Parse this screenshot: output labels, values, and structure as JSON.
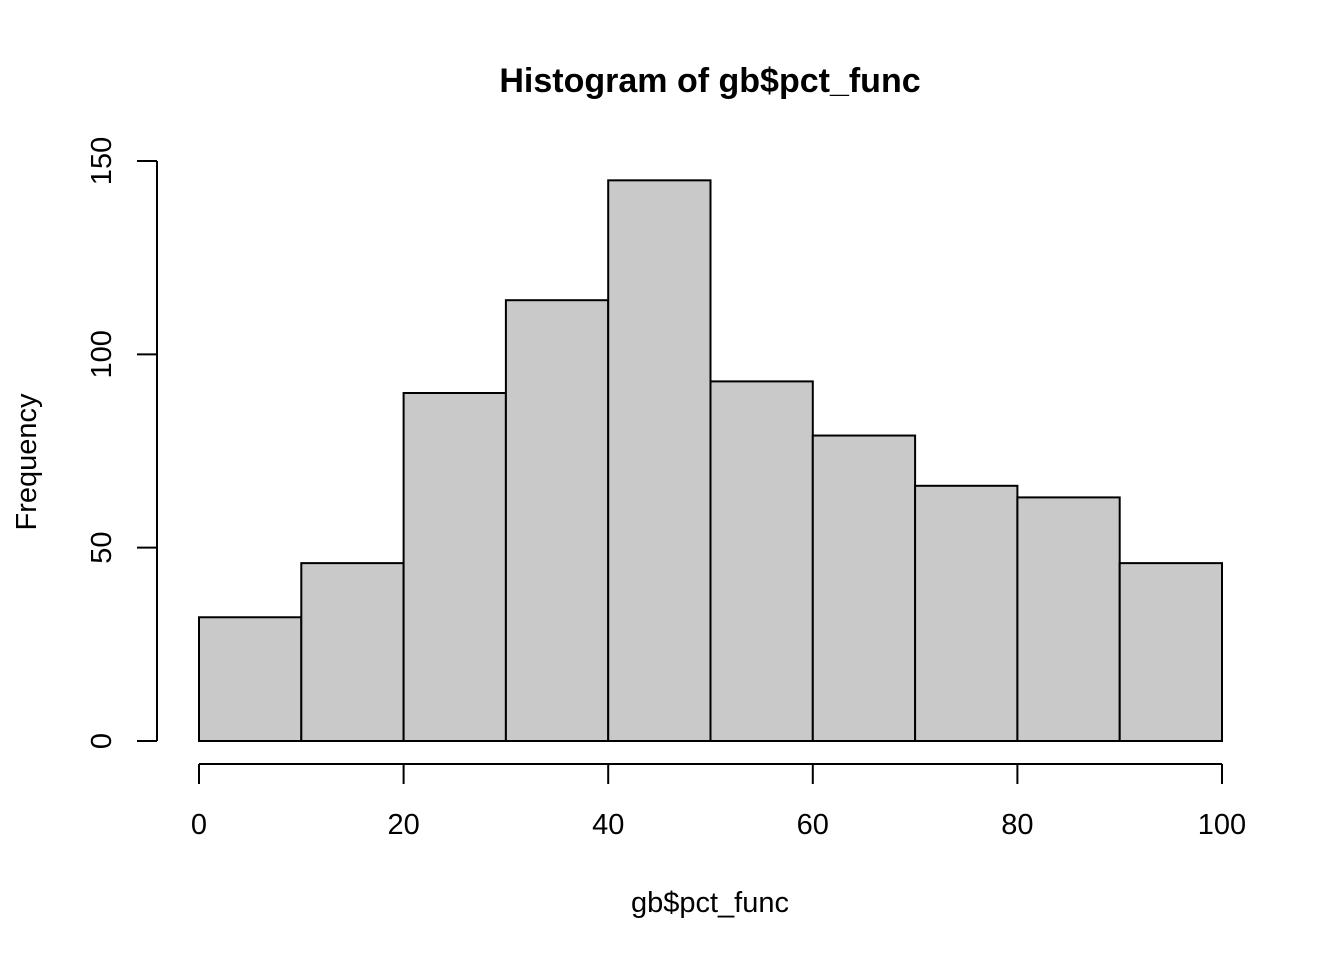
{
  "chart_data": {
    "type": "bar",
    "title": "Histogram of gb$pct_func",
    "xlabel": "gb$pct_func",
    "ylabel": "Frequency",
    "bin_edges": [
      0,
      10,
      20,
      30,
      40,
      50,
      60,
      70,
      80,
      90,
      100
    ],
    "values": [
      32,
      46,
      90,
      114,
      145,
      93,
      79,
      66,
      63,
      46
    ],
    "xlim": [
      0,
      100
    ],
    "ylim": [
      0,
      150
    ],
    "x_ticks": [
      "0",
      "20",
      "40",
      "60",
      "80",
      "100"
    ],
    "y_ticks": [
      "0",
      "50",
      "100",
      "150"
    ],
    "grid": false,
    "colors": {
      "bar_fill": "#c9c9c9",
      "bar_stroke": "#000000"
    }
  }
}
